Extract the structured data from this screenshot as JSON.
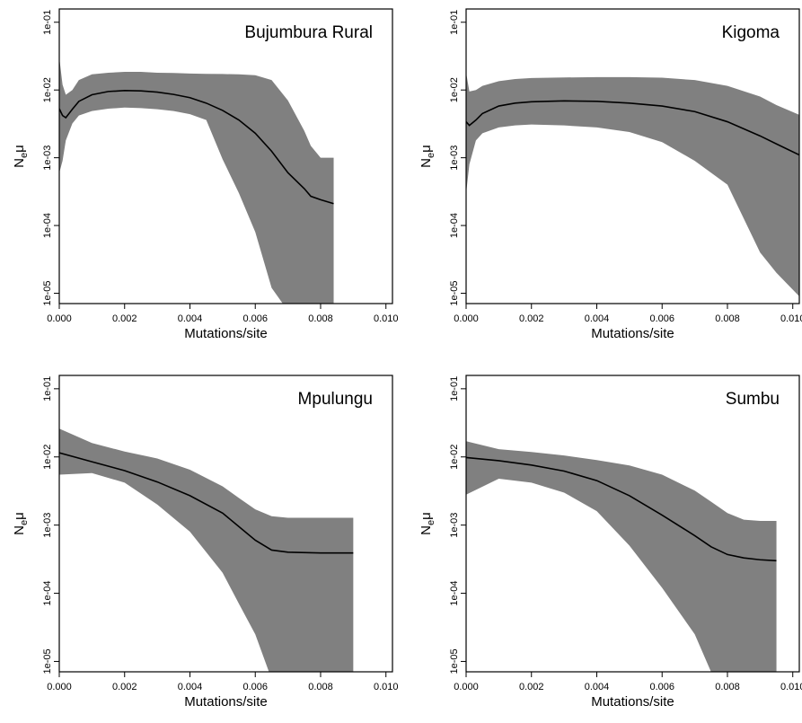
{
  "chart_data": [
    {
      "type": "area",
      "title": "Bujumbura Rural",
      "xlabel": "Mutations/site",
      "ylabel_main": "N",
      "ylabel_sub": "e",
      "ylabel_tail": "μ",
      "y_scale": "log",
      "xlim": [
        0,
        0.0102
      ],
      "ylim": [
        1e-05,
        0.1
      ],
      "x_ticks": [
        "0.000",
        "0.002",
        "0.004",
        "0.006",
        "0.008",
        "0.010"
      ],
      "y_ticks": [
        "1e-05",
        "1e-04",
        "1e-03",
        "1e-02",
        "1e-01"
      ],
      "series": [
        {
          "x": [
            0,
            0.0001,
            0.0002,
            0.0004,
            0.0006,
            0.001,
            0.0015,
            0.002,
            0.0025,
            0.003,
            0.0035,
            0.004,
            0.0045,
            0.005,
            0.0055,
            0.006,
            0.0065,
            0.007,
            0.0075,
            0.0077,
            0.008,
            0.0084
          ],
          "values": [
            0.0053,
            0.0042,
            0.0039,
            0.0052,
            0.0068,
            0.0085,
            0.0095,
            0.0098,
            0.0097,
            0.0093,
            0.0086,
            0.0077,
            0.0064,
            0.005,
            0.0036,
            0.0023,
            0.00125,
            0.0006,
            0.00035,
            0.00027,
            0.00024,
            0.00021
          ],
          "upper": [
            0.03,
            0.012,
            0.0085,
            0.01,
            0.014,
            0.017,
            0.018,
            0.0185,
            0.0185,
            0.018,
            0.0178,
            0.0175,
            0.0173,
            0.0172,
            0.017,
            0.0165,
            0.014,
            0.007,
            0.0025,
            0.0015,
            0.001,
            0.001
          ],
          "lower": [
            0.0006,
            0.0009,
            0.0018,
            0.0032,
            0.0042,
            0.0049,
            0.0053,
            0.0055,
            0.0054,
            0.0052,
            0.0049,
            0.0044,
            0.0036,
            0.00095,
            0.0003,
            8e-05,
            1.2e-05,
            5.5e-06,
            5.5e-06,
            5.5e-06,
            5.5e-06,
            5.5e-06
          ]
        }
      ]
    },
    {
      "type": "area",
      "title": "Kigoma",
      "xlabel": "Mutations/site",
      "ylabel_main": "N",
      "ylabel_sub": "e",
      "ylabel_tail": "μ",
      "y_scale": "log",
      "xlim": [
        0,
        0.0102
      ],
      "ylim": [
        1e-05,
        0.1
      ],
      "x_ticks": [
        "0.000",
        "0.002",
        "0.004",
        "0.006",
        "0.008",
        "0.010"
      ],
      "y_ticks": [
        "1e-05",
        "1e-04",
        "1e-03",
        "1e-02",
        "1e-01"
      ],
      "series": [
        {
          "x": [
            0,
            0.0001,
            0.0003,
            0.0005,
            0.001,
            0.0015,
            0.002,
            0.003,
            0.004,
            0.005,
            0.006,
            0.007,
            0.008,
            0.009,
            0.0095,
            0.0102
          ],
          "values": [
            0.0034,
            0.003,
            0.0036,
            0.0045,
            0.0058,
            0.0064,
            0.0067,
            0.0069,
            0.0068,
            0.0064,
            0.0058,
            0.0048,
            0.0034,
            0.0021,
            0.0016,
            0.0011
          ],
          "upper": [
            0.018,
            0.0095,
            0.01,
            0.0115,
            0.0135,
            0.0145,
            0.015,
            0.0153,
            0.0155,
            0.0155,
            0.0152,
            0.014,
            0.0115,
            0.008,
            0.006,
            0.0043
          ],
          "lower": [
            0.0003,
            0.0008,
            0.0018,
            0.0023,
            0.0028,
            0.003,
            0.0031,
            0.003,
            0.0028,
            0.0024,
            0.0017,
            0.0009,
            0.0004,
            4e-05,
            2e-05,
            9e-06
          ]
        }
      ]
    },
    {
      "type": "area",
      "title": "Mpulungu",
      "xlabel": "Mutations/site",
      "ylabel_main": "N",
      "ylabel_sub": "e",
      "ylabel_tail": "μ",
      "y_scale": "log",
      "xlim": [
        0,
        0.0102
      ],
      "ylim": [
        1e-05,
        0.1
      ],
      "x_ticks": [
        "0.000",
        "0.002",
        "0.004",
        "0.006",
        "0.008",
        "0.010"
      ],
      "y_ticks": [
        "1e-05",
        "1e-04",
        "1e-03",
        "1e-02",
        "1e-01"
      ],
      "series": [
        {
          "x": [
            0,
            0.001,
            0.002,
            0.003,
            0.004,
            0.005,
            0.0055,
            0.006,
            0.0065,
            0.007,
            0.008,
            0.009
          ],
          "values": [
            0.0115,
            0.0085,
            0.0063,
            0.0043,
            0.0027,
            0.0015,
            0.00095,
            0.0006,
            0.00043,
            0.0004,
            0.00039,
            0.00039
          ],
          "upper": [
            0.026,
            0.016,
            0.012,
            0.0095,
            0.0065,
            0.0037,
            0.0025,
            0.0017,
            0.00135,
            0.00128,
            0.00128,
            0.00128
          ],
          "lower": [
            0.0055,
            0.0058,
            0.0042,
            0.002,
            0.0008,
            0.0002,
            7e-05,
            2.5e-05,
            5.5e-06,
            5.5e-06,
            5.5e-06,
            5.5e-06
          ]
        }
      ]
    },
    {
      "type": "area",
      "title": "Sumbu",
      "xlabel": "Mutations/site",
      "ylabel_main": "N",
      "ylabel_sub": "e",
      "ylabel_tail": "μ",
      "y_scale": "log",
      "xlim": [
        0,
        0.0102
      ],
      "ylim": [
        1e-05,
        0.1
      ],
      "x_ticks": [
        "0.000",
        "0.002",
        "0.004",
        "0.006",
        "0.008",
        "0.010"
      ],
      "y_ticks": [
        "1e-05",
        "1e-04",
        "1e-03",
        "1e-02",
        "1e-01"
      ],
      "series": [
        {
          "x": [
            0,
            0.001,
            0.002,
            0.003,
            0.004,
            0.005,
            0.006,
            0.007,
            0.0075,
            0.008,
            0.0085,
            0.009,
            0.0095
          ],
          "values": [
            0.0098,
            0.0088,
            0.0076,
            0.0062,
            0.0045,
            0.0027,
            0.0014,
            0.0007,
            0.00048,
            0.00037,
            0.00033,
            0.00031,
            0.0003
          ],
          "upper": [
            0.017,
            0.013,
            0.0118,
            0.0105,
            0.009,
            0.0075,
            0.0055,
            0.0032,
            0.0022,
            0.0015,
            0.0012,
            0.00115,
            0.00115
          ],
          "lower": [
            0.0028,
            0.0048,
            0.0042,
            0.003,
            0.0016,
            0.0005,
            0.00012,
            2.5e-05,
            7e-06,
            5.5e-06,
            5.5e-06,
            5.5e-06,
            5.5e-06
          ]
        }
      ]
    }
  ]
}
